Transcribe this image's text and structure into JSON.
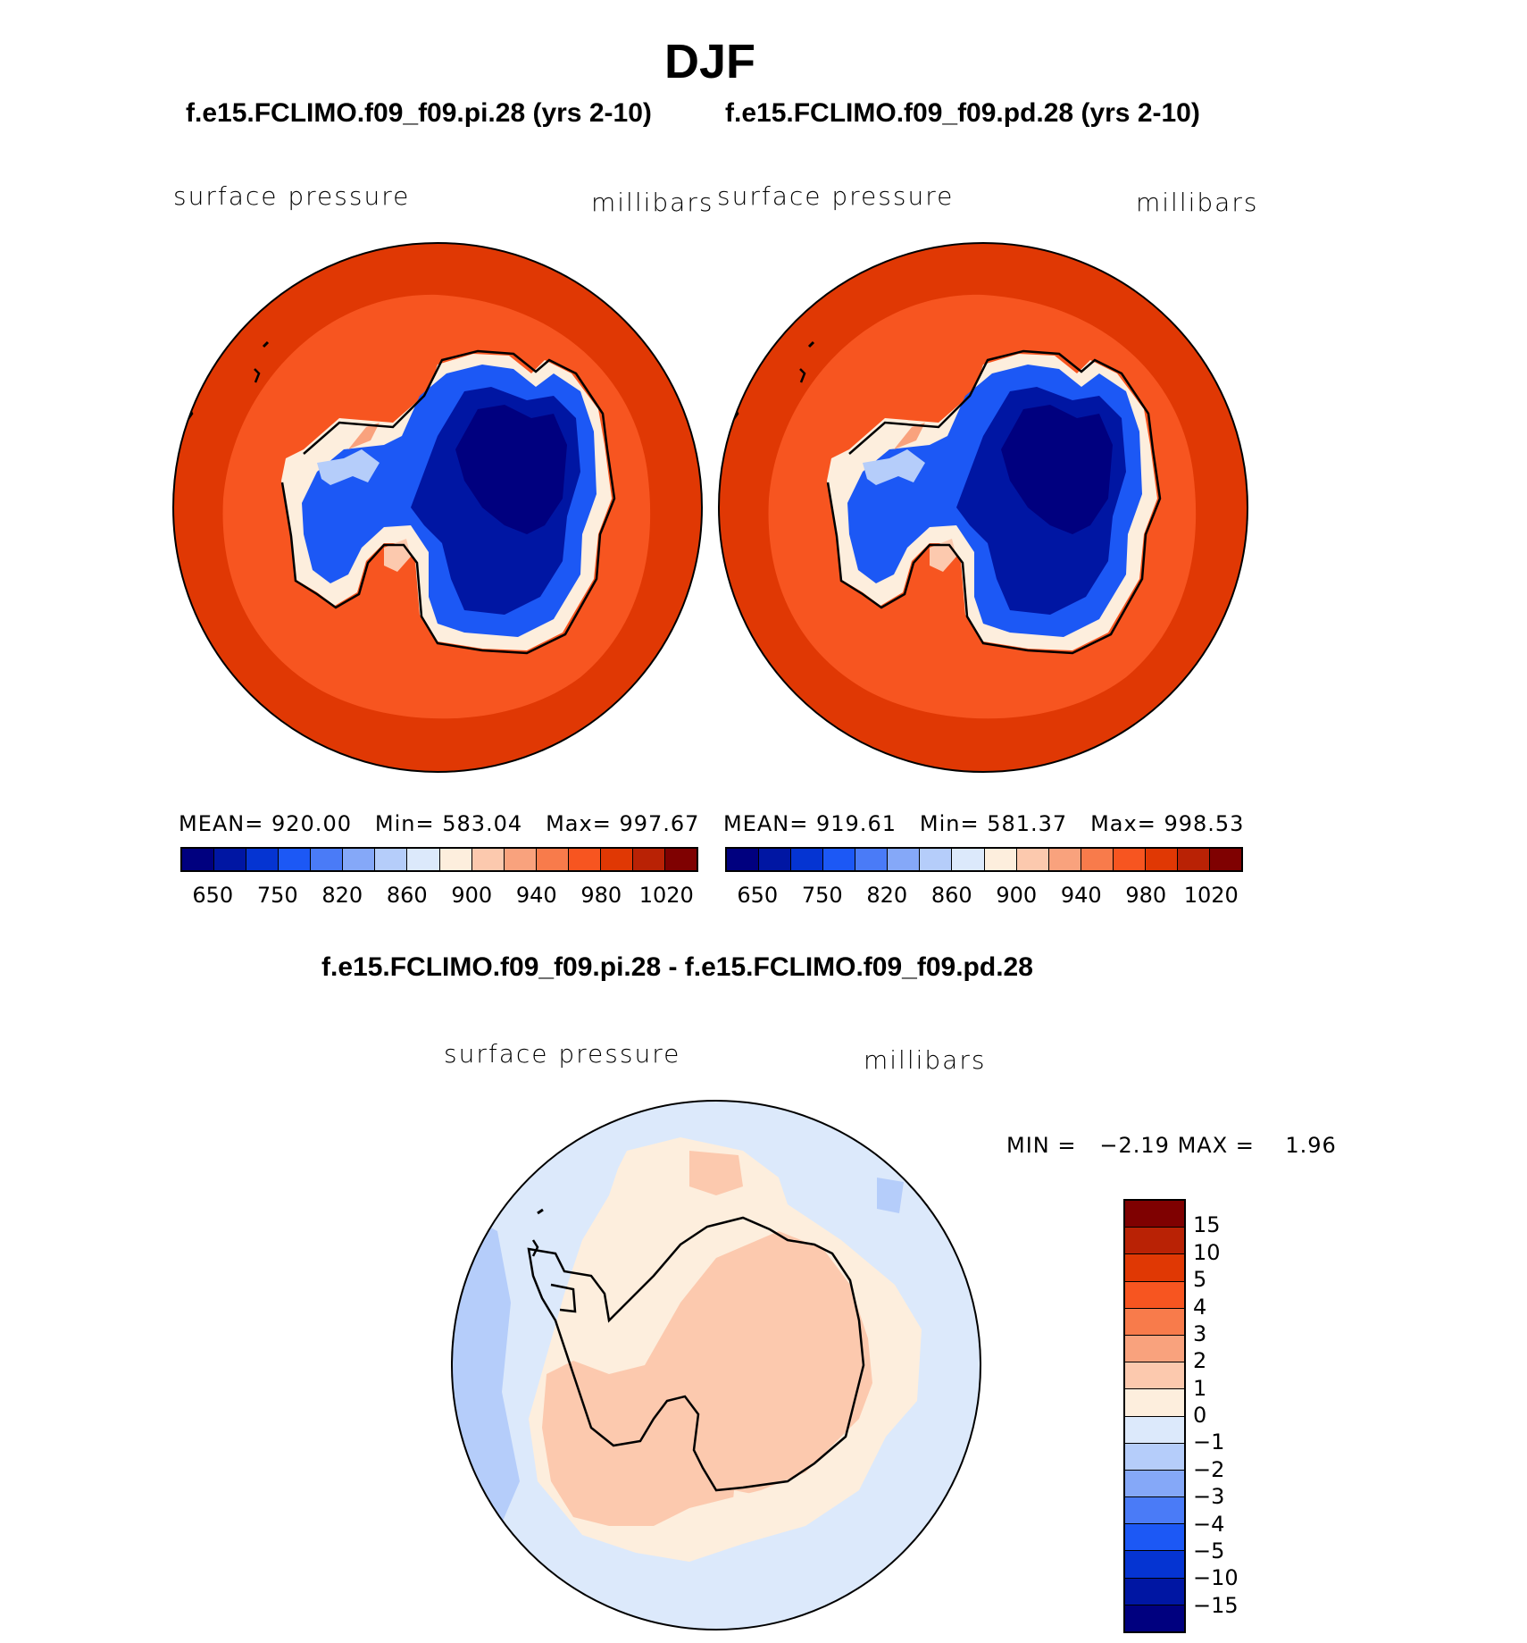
{
  "title": "DJF",
  "panels": [
    {
      "case": "f.e15.FCLIMO.f09_f09.pi.28 (yrs 2-10)",
      "var_label": "surface pressure",
      "units": "millibars",
      "stats": {
        "mean_label": "MEAN=",
        "mean": "920.00",
        "min_label": "Min=",
        "min": "583.04",
        "max_label": "Max=",
        "max": "997.67"
      }
    },
    {
      "case": "f.e15.FCLIMO.f09_f09.pd.28 (yrs 2-10)",
      "var_label": "surface pressure",
      "units": "millibars",
      "stats": {
        "mean_label": "MEAN=",
        "mean": "919.61",
        "min_label": "Min=",
        "min": "581.37",
        "max_label": "Max=",
        "max": "998.53"
      }
    }
  ],
  "colorbar_abs": {
    "colors": [
      "#00007f",
      "#0016a3",
      "#0534d2",
      "#1c58f5",
      "#4a7bf7",
      "#85a8f8",
      "#b5cdfa",
      "#dce9fb",
      "#fdeedd",
      "#fcc9ae",
      "#f9a27d",
      "#f87b4b",
      "#f75520",
      "#e03804",
      "#b92205",
      "#7f0101"
    ],
    "ticks": [
      "650",
      "750",
      "820",
      "860",
      "900",
      "940",
      "980",
      "1020"
    ]
  },
  "diff": {
    "title": "f.e15.FCLIMO.f09_f09.pi.28 - f.e15.FCLIMO.f09_f09.pd.28",
    "var_label": "surface pressure",
    "units": "millibars",
    "min_label": "MIN =",
    "min": "−2.19",
    "max_label": "MAX =",
    "max": "1.96",
    "colorbar": {
      "colors": [
        "#7f0101",
        "#b92205",
        "#e03804",
        "#f75520",
        "#f87b4b",
        "#f9a27d",
        "#fcc9ae",
        "#fdeedd",
        "#dce9fb",
        "#b5cdfa",
        "#85a8f8",
        "#4a7bf7",
        "#1c58f5",
        "#0534d2",
        "#0016a3",
        "#00007f"
      ],
      "ticks": [
        "15",
        "10",
        "5",
        "4",
        "3",
        "2",
        "1",
        "0",
        "−1",
        "−2",
        "−3",
        "−4",
        "−5",
        "−10",
        "−15"
      ]
    }
  }
}
